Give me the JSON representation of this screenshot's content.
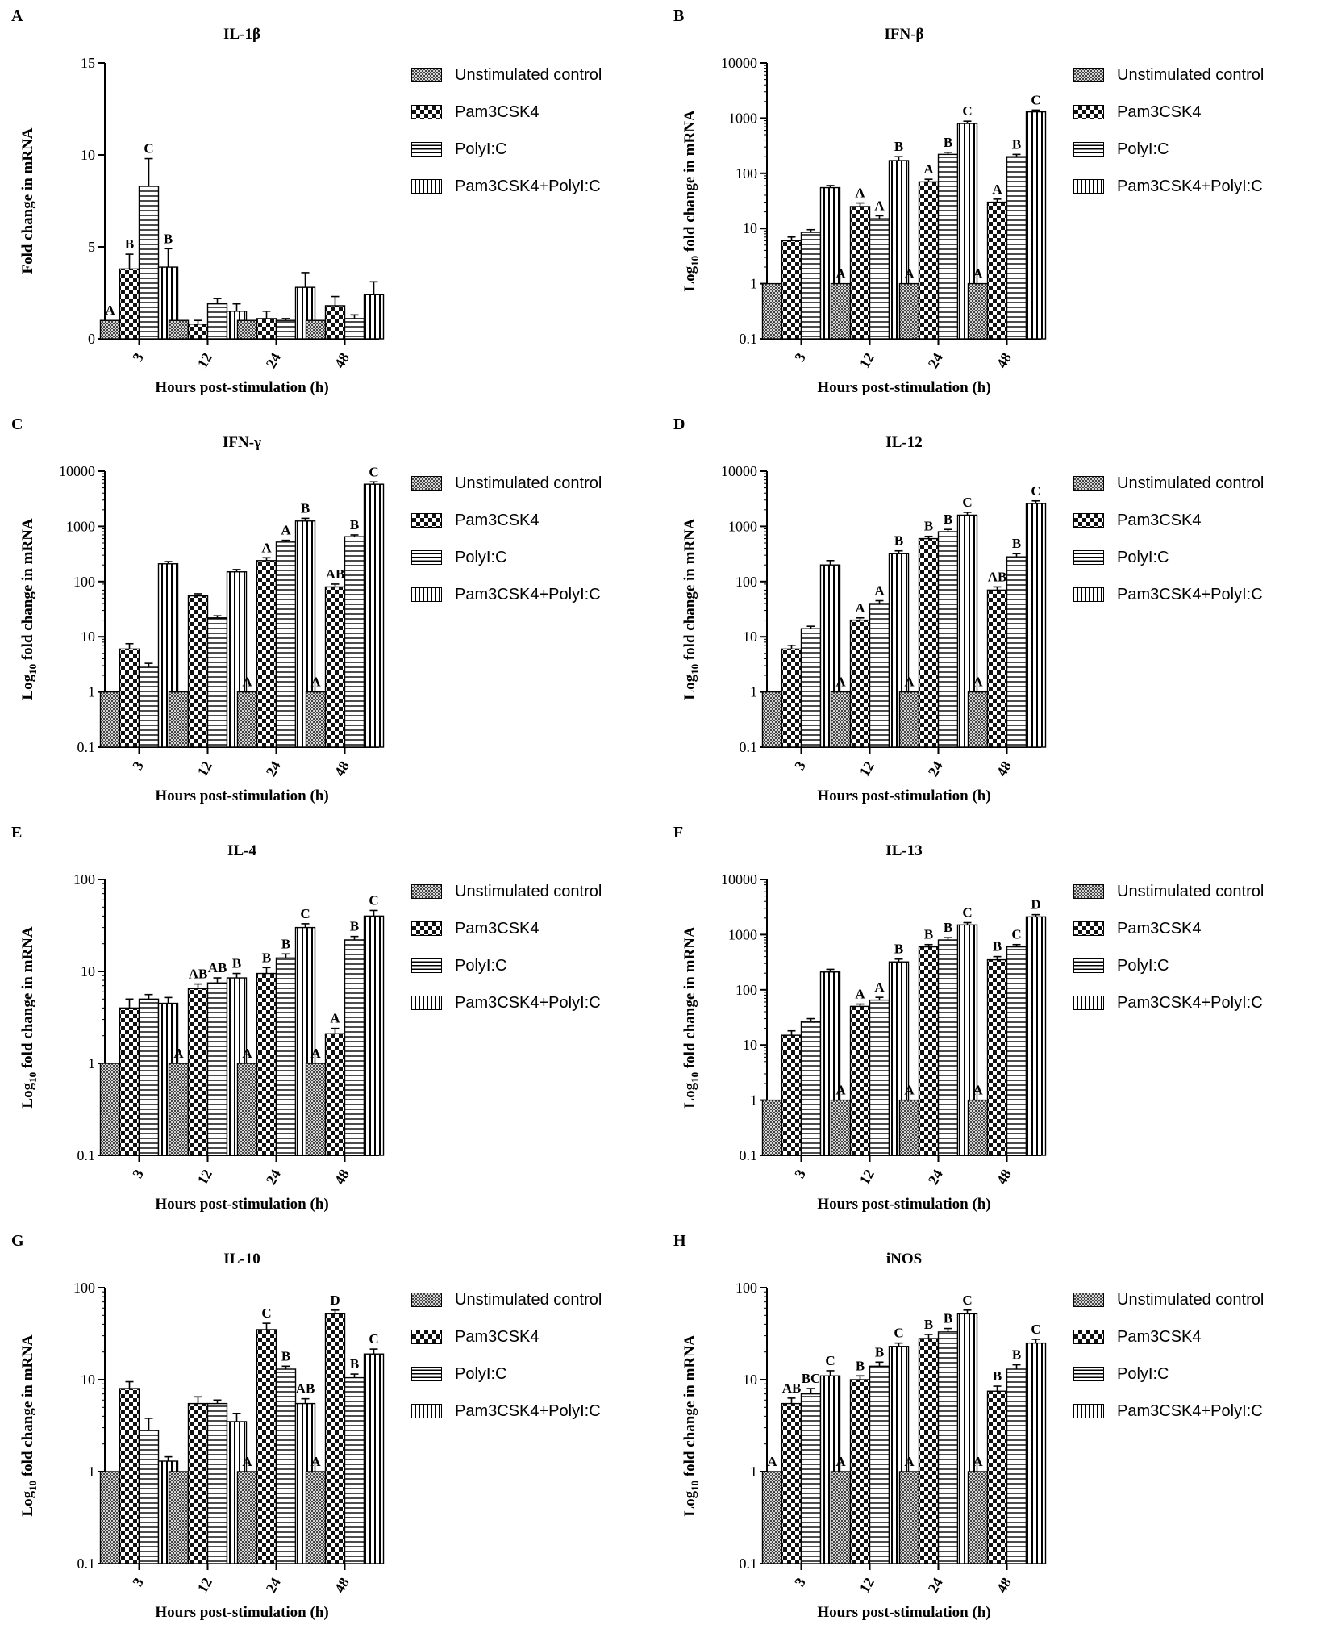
{
  "series_styles": [
    {
      "name": "Unstimulated control",
      "pattern": "dots-fine"
    },
    {
      "name": "Pam3CSK4",
      "pattern": "checker"
    },
    {
      "name": "PolyI:C",
      "pattern": "hstripe"
    },
    {
      "name": "Pam3CSK4+PolyI:C",
      "pattern": "vstripe"
    }
  ],
  "chart_data": [
    {
      "type": "bar",
      "panel_letter": "A",
      "title": "IL-1β",
      "xlabel": "Hours post-stimulation (h)",
      "ylabel": "Fold change in mRNA",
      "scale": "linear",
      "ylim": [
        0,
        15
      ],
      "yticks": [
        "0",
        "5",
        "10",
        "15"
      ],
      "ytick_values": [
        0,
        5,
        10,
        15
      ],
      "categories": [
        "3",
        "12",
        "24",
        "48"
      ],
      "series": [
        {
          "name": "Unstimulated control",
          "values": [
            1,
            1,
            1,
            1
          ],
          "errors": [
            0,
            0,
            0,
            0
          ],
          "labels": [
            "A",
            "",
            "",
            ""
          ]
        },
        {
          "name": "Pam3CSK4",
          "values": [
            3.8,
            0.8,
            1.1,
            1.8
          ],
          "errors": [
            0.8,
            0.2,
            0.4,
            0.5
          ],
          "labels": [
            "B",
            "",
            "",
            ""
          ]
        },
        {
          "name": "PolyI:C",
          "values": [
            8.3,
            1.9,
            1.0,
            1.1
          ],
          "errors": [
            1.5,
            0.3,
            0.1,
            0.2
          ],
          "labels": [
            "C",
            "",
            "",
            ""
          ]
        },
        {
          "name": "Pam3CSK4+PolyI:C",
          "values": [
            3.9,
            1.5,
            2.8,
            2.4
          ],
          "errors": [
            1.0,
            0.4,
            0.8,
            0.7
          ],
          "labels": [
            "B",
            "",
            "",
            ""
          ]
        }
      ]
    },
    {
      "type": "bar",
      "panel_letter": "B",
      "title": "IFN-β",
      "xlabel": "Hours post-stimulation (h)",
      "ylabel": "Log10 fold change in mRNA",
      "scale": "log",
      "ylim": [
        0.1,
        10000
      ],
      "yticks": [
        "0.1",
        "1",
        "10",
        "100",
        "1000",
        "10000"
      ],
      "ytick_values": [
        0.1,
        1,
        10,
        100,
        1000,
        10000
      ],
      "categories": [
        "3",
        "12",
        "24",
        "48"
      ],
      "series": [
        {
          "name": "Unstimulated control",
          "values": [
            1,
            1,
            1,
            1
          ],
          "errors": [
            0,
            0,
            0,
            0
          ],
          "labels": [
            "",
            "A",
            "A",
            "A"
          ]
        },
        {
          "name": "Pam3CSK4",
          "values": [
            6,
            25,
            70,
            30
          ],
          "errors": [
            1,
            4,
            8,
            4
          ],
          "labels": [
            "",
            "A",
            "A",
            "A"
          ]
        },
        {
          "name": "PolyI:C",
          "values": [
            8.5,
            15,
            220,
            200
          ],
          "errors": [
            1,
            2,
            20,
            20
          ],
          "labels": [
            "",
            "A",
            "B",
            "B"
          ]
        },
        {
          "name": "Pam3CSK4+PolyI:C",
          "values": [
            55,
            170,
            800,
            1300
          ],
          "errors": [
            5,
            30,
            80,
            100
          ],
          "labels": [
            "",
            "B",
            "C",
            "C"
          ]
        }
      ]
    },
    {
      "type": "bar",
      "panel_letter": "C",
      "title": "IFN-γ",
      "xlabel": "Hours post-stimulation (h)",
      "ylabel": "Log10 fold change in mRNA",
      "scale": "log",
      "ylim": [
        0.1,
        10000
      ],
      "yticks": [
        "0.1",
        "1",
        "10",
        "100",
        "1000",
        "10000"
      ],
      "ytick_values": [
        0.1,
        1,
        10,
        100,
        1000,
        10000
      ],
      "categories": [
        "3",
        "12",
        "24",
        "48"
      ],
      "series": [
        {
          "name": "Unstimulated control",
          "values": [
            1,
            1,
            1,
            1
          ],
          "errors": [
            0,
            0,
            0,
            0
          ],
          "labels": [
            "",
            "",
            "A",
            "A"
          ]
        },
        {
          "name": "Pam3CSK4",
          "values": [
            6,
            55,
            240,
            80
          ],
          "errors": [
            1.5,
            5,
            30,
            10
          ],
          "labels": [
            "",
            "",
            "A",
            "AB"
          ]
        },
        {
          "name": "PolyI:C",
          "values": [
            2.8,
            22,
            520,
            650
          ],
          "errors": [
            0.5,
            2,
            40,
            50
          ],
          "labels": [
            "",
            "",
            "A",
            "B"
          ]
        },
        {
          "name": "Pam3CSK4+PolyI:C",
          "values": [
            210,
            150,
            1250,
            5800
          ],
          "errors": [
            20,
            15,
            150,
            600
          ],
          "labels": [
            "",
            "",
            "B",
            "C"
          ]
        }
      ]
    },
    {
      "type": "bar",
      "panel_letter": "D",
      "title": "IL-12",
      "xlabel": "Hours post-stimulation (h)",
      "ylabel": "Log10 fold change in mRNA",
      "scale": "log",
      "ylim": [
        0.1,
        10000
      ],
      "yticks": [
        "0.1",
        "1",
        "10",
        "100",
        "1000",
        "10000"
      ],
      "ytick_values": [
        0.1,
        1,
        10,
        100,
        1000,
        10000
      ],
      "categories": [
        "3",
        "12",
        "24",
        "48"
      ],
      "series": [
        {
          "name": "Unstimulated control",
          "values": [
            1,
            1,
            1,
            1
          ],
          "errors": [
            0,
            0,
            0,
            0
          ],
          "labels": [
            "",
            "A",
            "A",
            "A"
          ]
        },
        {
          "name": "Pam3CSK4",
          "values": [
            6,
            20,
            600,
            70
          ],
          "errors": [
            1,
            2,
            60,
            10
          ],
          "labels": [
            "",
            "A",
            "B",
            "AB"
          ]
        },
        {
          "name": "PolyI:C",
          "values": [
            14,
            40,
            800,
            280
          ],
          "errors": [
            1.5,
            5,
            80,
            40
          ],
          "labels": [
            "",
            "A",
            "B",
            "B"
          ]
        },
        {
          "name": "Pam3CSK4+PolyI:C",
          "values": [
            200,
            320,
            1600,
            2600
          ],
          "errors": [
            40,
            40,
            200,
            300
          ],
          "labels": [
            "",
            "B",
            "C",
            "C"
          ]
        }
      ]
    },
    {
      "type": "bar",
      "panel_letter": "E",
      "title": "IL-4",
      "xlabel": "Hours post-stimulation (h)",
      "ylabel": "Log10 fold change in mRNA",
      "scale": "log",
      "ylim": [
        0.1,
        100
      ],
      "yticks": [
        "0.1",
        "1",
        "10",
        "100"
      ],
      "ytick_values": [
        0.1,
        1,
        10,
        100
      ],
      "categories": [
        "3",
        "12",
        "24",
        "48"
      ],
      "series": [
        {
          "name": "Unstimulated control",
          "values": [
            1,
            1,
            1,
            1
          ],
          "errors": [
            0,
            0,
            0,
            0
          ],
          "labels": [
            "",
            "A",
            "A",
            "A"
          ]
        },
        {
          "name": "Pam3CSK4",
          "values": [
            4,
            6.5,
            9.5,
            2.1
          ],
          "errors": [
            1,
            0.8,
            1.5,
            0.3
          ],
          "labels": [
            "",
            "AB",
            "B",
            "A"
          ]
        },
        {
          "name": "PolyI:C",
          "values": [
            5,
            7.5,
            14,
            22
          ],
          "errors": [
            0.6,
            1,
            1.5,
            2
          ],
          "labels": [
            "",
            "AB",
            "B",
            "B"
          ]
        },
        {
          "name": "Pam3CSK4+PolyI:C",
          "values": [
            4.5,
            8.5,
            30,
            40
          ],
          "errors": [
            0.7,
            1,
            3,
            6
          ],
          "labels": [
            "",
            "B",
            "C",
            "C"
          ]
        }
      ]
    },
    {
      "type": "bar",
      "panel_letter": "F",
      "title": "IL-13",
      "xlabel": "Hours post-stimulation (h)",
      "ylabel": "Log10 fold change in mRNA",
      "scale": "log",
      "ylim": [
        0.1,
        10000
      ],
      "yticks": [
        "0.1",
        "1",
        "10",
        "100",
        "1000",
        "10000"
      ],
      "ytick_values": [
        0.1,
        1,
        10,
        100,
        1000,
        10000
      ],
      "categories": [
        "3",
        "12",
        "24",
        "48"
      ],
      "series": [
        {
          "name": "Unstimulated control",
          "values": [
            1,
            1,
            1,
            1
          ],
          "errors": [
            0,
            0,
            0,
            0
          ],
          "labels": [
            "",
            "A",
            "A",
            "A"
          ]
        },
        {
          "name": "Pam3CSK4",
          "values": [
            15,
            50,
            600,
            350
          ],
          "errors": [
            3,
            5,
            60,
            50
          ],
          "labels": [
            "",
            "A",
            "B",
            "B"
          ]
        },
        {
          "name": "PolyI:C",
          "values": [
            27,
            65,
            800,
            600
          ],
          "errors": [
            3,
            8,
            80,
            60
          ],
          "labels": [
            "",
            "A",
            "B",
            "C"
          ]
        },
        {
          "name": "Pam3CSK4+PolyI:C",
          "values": [
            210,
            320,
            1500,
            2100
          ],
          "errors": [
            25,
            40,
            150,
            200
          ],
          "labels": [
            "",
            "B",
            "C",
            "D"
          ]
        }
      ]
    },
    {
      "type": "bar",
      "panel_letter": "G",
      "title": "IL-10",
      "xlabel": "Hours post-stimulation (h)",
      "ylabel": "Log10 fold change in mRNA",
      "scale": "log",
      "ylim": [
        0.1,
        100
      ],
      "yticks": [
        "0.1",
        "1",
        "10",
        "100"
      ],
      "ytick_values": [
        0.1,
        1,
        10,
        100
      ],
      "categories": [
        "3",
        "12",
        "24",
        "48"
      ],
      "series": [
        {
          "name": "Unstimulated control",
          "values": [
            1,
            1,
            1,
            1
          ],
          "errors": [
            0,
            0,
            0,
            0
          ],
          "labels": [
            "",
            "",
            "A",
            "A"
          ]
        },
        {
          "name": "Pam3CSK4",
          "values": [
            8,
            5.5,
            35,
            52
          ],
          "errors": [
            1.5,
            1,
            6,
            5
          ],
          "labels": [
            "",
            "",
            "C",
            "D"
          ]
        },
        {
          "name": "PolyI:C",
          "values": [
            2.8,
            5.5,
            13,
            10.5
          ],
          "errors": [
            1,
            0.5,
            1,
            1
          ],
          "labels": [
            "",
            "",
            "B",
            "B"
          ]
        },
        {
          "name": "Pam3CSK4+PolyI:C",
          "values": [
            1.3,
            3.5,
            5.5,
            19
          ],
          "errors": [
            0.15,
            0.8,
            0.7,
            2.5
          ],
          "labels": [
            "",
            "",
            "AB",
            "C"
          ]
        }
      ]
    },
    {
      "type": "bar",
      "panel_letter": "H",
      "title": "iNOS",
      "xlabel": "Hours post-stimulation (h)",
      "ylabel": "Log10 fold change in mRNA",
      "scale": "log",
      "ylim": [
        0.1,
        100
      ],
      "yticks": [
        "0.1",
        "1",
        "10",
        "100"
      ],
      "ytick_values": [
        0.1,
        1,
        10,
        100
      ],
      "categories": [
        "3",
        "12",
        "24",
        "48"
      ],
      "series": [
        {
          "name": "Unstimulated control",
          "values": [
            1,
            1,
            1,
            1
          ],
          "errors": [
            0,
            0,
            0,
            0
          ],
          "labels": [
            "A",
            "A",
            "A",
            "A"
          ]
        },
        {
          "name": "Pam3CSK4",
          "values": [
            5.5,
            10,
            28,
            7.5
          ],
          "errors": [
            0.8,
            1,
            3,
            1
          ],
          "labels": [
            "AB",
            "B",
            "B",
            "B"
          ]
        },
        {
          "name": "PolyI:C",
          "values": [
            7,
            14,
            33,
            13
          ],
          "errors": [
            1,
            1.5,
            3,
            1.5
          ],
          "labels": [
            "BC",
            "B",
            "B",
            "B"
          ]
        },
        {
          "name": "Pam3CSK4+PolyI:C",
          "values": [
            11,
            23,
            52,
            25
          ],
          "errors": [
            1.5,
            2,
            5,
            2.5
          ],
          "labels": [
            "C",
            "C",
            "C",
            "C"
          ]
        }
      ]
    }
  ]
}
